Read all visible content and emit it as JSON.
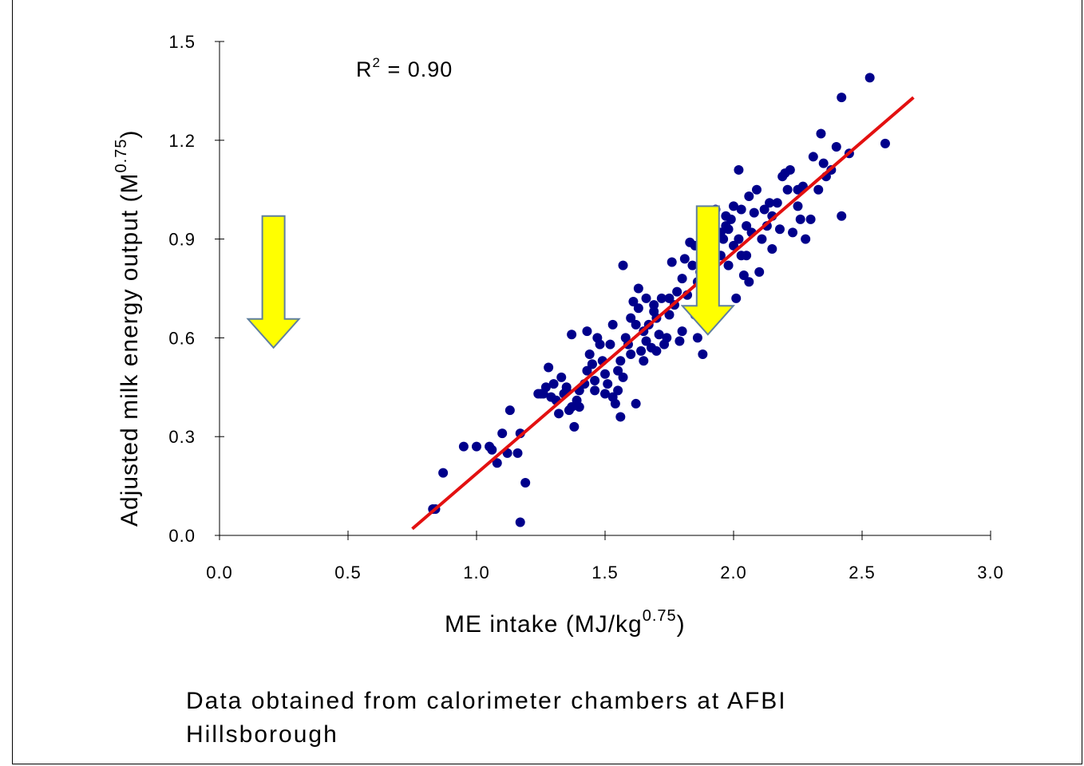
{
  "chart_data": {
    "type": "scatter",
    "xlabel_main": "ME intake (MJ/kg",
    "xlabel_sup": "0.75",
    "xlabel_close": ")",
    "ylabel_main": "Adjusted milk energy output (M",
    "ylabel_sup": "0.75",
    "ylabel_tail": ")",
    "xlim": [
      0,
      3
    ],
    "ylim": [
      0,
      1.5
    ],
    "x_ticks": [
      "0.0",
      "0.5",
      "1.0",
      "1.5",
      "2.0",
      "2.5",
      "3.0"
    ],
    "y_ticks": [
      "0.0",
      "0.3",
      "0.6",
      "0.9",
      "1.2",
      "1.5"
    ],
    "annotation_r2_main": "R",
    "annotation_r2_sup": "2",
    "annotation_r2_value": " = 0.90",
    "point_color": "#00008b",
    "line_color": "#e31010",
    "arrow_fill": "#ffff00",
    "arrow_stroke": "#5f7f9f",
    "trendline": {
      "x": [
        0.75,
        2.7
      ],
      "y": [
        0.02,
        1.33
      ]
    },
    "arrows": [
      {
        "x": 0.21,
        "y_top": 0.97,
        "y_tip": 0.57
      },
      {
        "x": 1.9,
        "y_top": 1.0,
        "y_tip": 0.61
      }
    ],
    "series": [
      {
        "points": [
          [
            0.83,
            0.08
          ],
          [
            0.84,
            0.08
          ],
          [
            0.87,
            0.19
          ],
          [
            0.95,
            0.27
          ],
          [
            1.0,
            0.27
          ],
          [
            1.05,
            0.27
          ],
          [
            1.06,
            0.26
          ],
          [
            1.08,
            0.22
          ],
          [
            1.1,
            0.31
          ],
          [
            1.12,
            0.25
          ],
          [
            1.13,
            0.38
          ],
          [
            1.16,
            0.25
          ],
          [
            1.17,
            0.31
          ],
          [
            1.17,
            0.04
          ],
          [
            1.19,
            0.16
          ],
          [
            1.24,
            0.43
          ],
          [
            1.26,
            0.43
          ],
          [
            1.27,
            0.45
          ],
          [
            1.28,
            0.51
          ],
          [
            1.29,
            0.42
          ],
          [
            1.3,
            0.46
          ],
          [
            1.31,
            0.41
          ],
          [
            1.32,
            0.37
          ],
          [
            1.33,
            0.48
          ],
          [
            1.34,
            0.43
          ],
          [
            1.35,
            0.44
          ],
          [
            1.36,
            0.38
          ],
          [
            1.37,
            0.39
          ],
          [
            1.37,
            0.61
          ],
          [
            1.38,
            0.33
          ],
          [
            1.39,
            0.41
          ],
          [
            1.4,
            0.44
          ],
          [
            1.4,
            0.39
          ],
          [
            1.42,
            0.46
          ],
          [
            1.43,
            0.62
          ],
          [
            1.43,
            0.5
          ],
          [
            1.44,
            0.55
          ],
          [
            1.45,
            0.52
          ],
          [
            1.46,
            0.44
          ],
          [
            1.46,
            0.47
          ],
          [
            1.47,
            0.6
          ],
          [
            1.48,
            0.58
          ],
          [
            1.49,
            0.53
          ],
          [
            1.5,
            0.49
          ],
          [
            1.5,
            0.43
          ],
          [
            1.51,
            0.46
          ],
          [
            1.52,
            0.58
          ],
          [
            1.53,
            0.42
          ],
          [
            1.53,
            0.64
          ],
          [
            1.54,
            0.4
          ],
          [
            1.55,
            0.44
          ],
          [
            1.56,
            0.53
          ],
          [
            1.56,
            0.36
          ],
          [
            1.57,
            0.48
          ],
          [
            1.57,
            0.82
          ],
          [
            1.58,
            0.6
          ],
          [
            1.59,
            0.58
          ],
          [
            1.6,
            0.66
          ],
          [
            1.61,
            0.71
          ],
          [
            1.62,
            0.64
          ],
          [
            1.62,
            0.4
          ],
          [
            1.63,
            0.69
          ],
          [
            1.63,
            0.75
          ],
          [
            1.64,
            0.56
          ],
          [
            1.65,
            0.62
          ],
          [
            1.65,
            0.53
          ],
          [
            1.66,
            0.72
          ],
          [
            1.66,
            0.59
          ],
          [
            1.67,
            0.64
          ],
          [
            1.68,
            0.57
          ],
          [
            1.69,
            0.68
          ],
          [
            1.69,
            0.7
          ],
          [
            1.7,
            0.56
          ],
          [
            1.71,
            0.61
          ],
          [
            1.72,
            0.72
          ],
          [
            1.73,
            0.58
          ],
          [
            1.74,
            0.6
          ],
          [
            1.75,
            0.67
          ],
          [
            1.76,
            0.83
          ],
          [
            1.77,
            0.7
          ],
          [
            1.78,
            0.74
          ],
          [
            1.79,
            0.59
          ],
          [
            1.8,
            0.62
          ],
          [
            1.8,
            0.78
          ],
          [
            1.81,
            0.84
          ],
          [
            1.82,
            0.73
          ],
          [
            1.83,
            0.89
          ],
          [
            1.84,
            0.82
          ],
          [
            1.85,
            0.88
          ],
          [
            1.85,
            0.67
          ],
          [
            1.86,
            0.77
          ],
          [
            1.86,
            0.6
          ],
          [
            1.87,
            0.8
          ],
          [
            1.88,
            0.55
          ],
          [
            1.89,
            0.92
          ],
          [
            1.9,
            0.81
          ],
          [
            1.91,
            0.96
          ],
          [
            1.92,
            0.87
          ],
          [
            1.93,
            0.99
          ],
          [
            1.94,
            0.91
          ],
          [
            1.95,
            0.85
          ],
          [
            1.96,
            0.9
          ],
          [
            1.97,
            0.94
          ],
          [
            1.98,
            0.82
          ],
          [
            1.99,
            0.96
          ],
          [
            2.0,
            0.88
          ],
          [
            2.0,
            1.0
          ],
          [
            2.01,
            0.72
          ],
          [
            2.02,
            0.9
          ],
          [
            2.02,
            1.11
          ],
          [
            2.03,
            0.99
          ],
          [
            2.04,
            0.79
          ],
          [
            2.05,
            0.94
          ],
          [
            2.06,
            0.77
          ],
          [
            2.06,
            1.03
          ],
          [
            2.07,
            0.92
          ],
          [
            2.08,
            0.98
          ],
          [
            2.09,
            1.05
          ],
          [
            2.1,
            0.8
          ],
          [
            2.11,
            0.9
          ],
          [
            2.12,
            0.99
          ],
          [
            2.13,
            0.94
          ],
          [
            2.14,
            1.01
          ],
          [
            2.15,
            0.87
          ],
          [
            2.17,
            1.01
          ],
          [
            2.18,
            0.93
          ],
          [
            2.19,
            1.09
          ],
          [
            2.2,
            1.1
          ],
          [
            2.21,
            1.05
          ],
          [
            2.22,
            1.11
          ],
          [
            2.23,
            0.92
          ],
          [
            2.25,
            1.05
          ],
          [
            2.26,
            0.96
          ],
          [
            2.27,
            1.06
          ],
          [
            2.28,
            0.9
          ],
          [
            2.3,
            0.96
          ],
          [
            2.31,
            1.15
          ],
          [
            2.33,
            1.05
          ],
          [
            2.34,
            1.22
          ],
          [
            2.35,
            1.13
          ],
          [
            2.36,
            1.09
          ],
          [
            2.38,
            1.11
          ],
          [
            2.4,
            1.18
          ],
          [
            2.42,
            0.97
          ],
          [
            2.42,
            1.33
          ],
          [
            2.45,
            1.16
          ],
          [
            2.53,
            1.39
          ],
          [
            2.59,
            1.19
          ],
          [
            1.95,
            0.92
          ],
          [
            1.9,
            0.85
          ],
          [
            1.97,
            0.97
          ],
          [
            2.05,
            0.85
          ],
          [
            1.7,
            0.66
          ],
          [
            1.75,
            0.72
          ],
          [
            1.6,
            0.55
          ],
          [
            1.55,
            0.5
          ],
          [
            1.45,
            0.52
          ],
          [
            1.35,
            0.45
          ],
          [
            1.25,
            0.43
          ],
          [
            2.15,
            0.97
          ],
          [
            2.25,
            1.0
          ],
          [
            1.92,
            0.77
          ],
          [
            1.98,
            0.93
          ],
          [
            2.03,
            0.85
          ]
        ]
      }
    ]
  },
  "footer_note_line1": "Data obtained from calorimeter chambers at AFBI",
  "footer_note_line2": "Hillsborough"
}
